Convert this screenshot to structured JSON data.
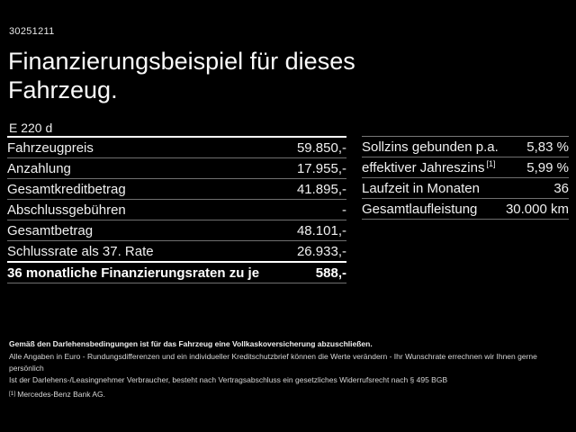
{
  "header": {
    "id_number": "30251211",
    "title_line1": "Finanzierungsbeispiel für dieses",
    "title_line2": "Fahrzeug.",
    "model": "E 220 d"
  },
  "left_table": {
    "rows": [
      {
        "label": "Fahrzeugpreis",
        "value": "59.850,-"
      },
      {
        "label": "Anzahlung",
        "value": "17.955,-"
      },
      {
        "label": "Gesamtkreditbetrag",
        "value": "41.895,-"
      },
      {
        "label": "Abschlussgebühren",
        "value": "-"
      },
      {
        "label": "Gesamtbetrag",
        "value": "48.101,-"
      },
      {
        "label": "Schlussrate als 37. Rate",
        "value": "26.933,-"
      },
      {
        "label": "36 monatliche Finanzierungsraten zu je",
        "value": "588,-"
      }
    ]
  },
  "right_table": {
    "rows": [
      {
        "label": "Sollzins gebunden p.a.",
        "sup": "",
        "value": "5,83 %"
      },
      {
        "label": "effektiver Jahreszins",
        "sup": "[1]",
        "value": "5,99 %"
      },
      {
        "label": "Laufzeit in Monaten",
        "sup": "",
        "value": "36"
      },
      {
        "label": "Gesamtlaufleistung",
        "sup": "",
        "value": "30.000 km"
      }
    ]
  },
  "footer": {
    "bold_line": "Gemäß den Darlehensbedingungen ist für das Fahrzeug eine Vollkaskoversicherung abzuschließen.",
    "line2": "Alle Angaben in Euro - Rundungsdifferenzen und ein individueller Kreditschutzbrief können die Werte verändern - Ihr Wunschrate errechnen wir Ihnen gerne persönlich",
    "line3": "Ist der Darlehens-/Leasingnehmer Verbraucher, besteht nach Vertragsabschluss ein gesetzliches Widerrufsrecht nach § 495 BGB",
    "footnote_marker": "[1]",
    "footnote_text": "Mercedes-Benz Bank AG."
  },
  "colors": {
    "background": "#000000",
    "text": "#f2f2f2",
    "divider_gray": "#6f6f6f",
    "divider_white": "#ffffff"
  }
}
